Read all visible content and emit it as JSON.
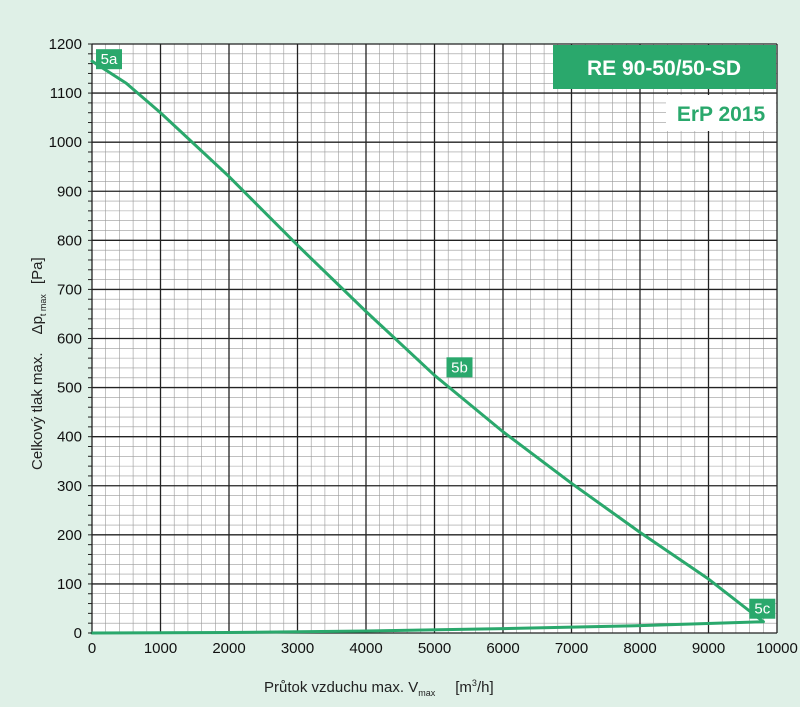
{
  "chart_data": {
    "type": "line",
    "model_badge": "RE 90-50/50-SD",
    "erp_badge": "ErP 2015",
    "xlabel": {
      "main": "Průtok vzduchu max. V",
      "sub": "max",
      "unit_pre": "[m",
      "unit_sup": "3",
      "unit_post": "/h]"
    },
    "ylabel": {
      "main": "Celkový tlak max.",
      "symbol": "Δp",
      "sub": "t max",
      "unit": "[Pa]"
    },
    "xlim": [
      0,
      10000
    ],
    "ylim": [
      0,
      1200
    ],
    "x_ticks": [
      0,
      1000,
      2000,
      3000,
      4000,
      5000,
      6000,
      7000,
      8000,
      9000,
      10000
    ],
    "y_ticks": [
      0,
      100,
      200,
      300,
      400,
      500,
      600,
      700,
      800,
      900,
      1000,
      1100,
      1200
    ],
    "grid": true,
    "series": [
      {
        "x": [
          0,
          500,
          1000,
          2000,
          3000,
          4000,
          5000,
          6000,
          7000,
          8000,
          9000,
          9800
        ],
        "y": [
          1165,
          1120,
          1060,
          930,
          790,
          655,
          525,
          410,
          305,
          205,
          110,
          23
        ]
      },
      {
        "x": [
          0,
          2000,
          4000,
          6000,
          8000,
          9800
        ],
        "y": [
          0,
          1,
          4,
          9,
          15,
          23
        ]
      }
    ],
    "points": [
      {
        "label": "5a",
        "x": 0,
        "y": 1165
      },
      {
        "label": "5b",
        "x": 5000,
        "y": 525
      },
      {
        "label": "5c",
        "x": 9800,
        "y": 23
      }
    ],
    "colors": {
      "curve": "#2aa86c",
      "badge": "#2aa86c",
      "background": "#dff0e7",
      "plot": "#ffffff",
      "grid_major": "#222222",
      "grid_minor": "#9a9a9a"
    }
  }
}
